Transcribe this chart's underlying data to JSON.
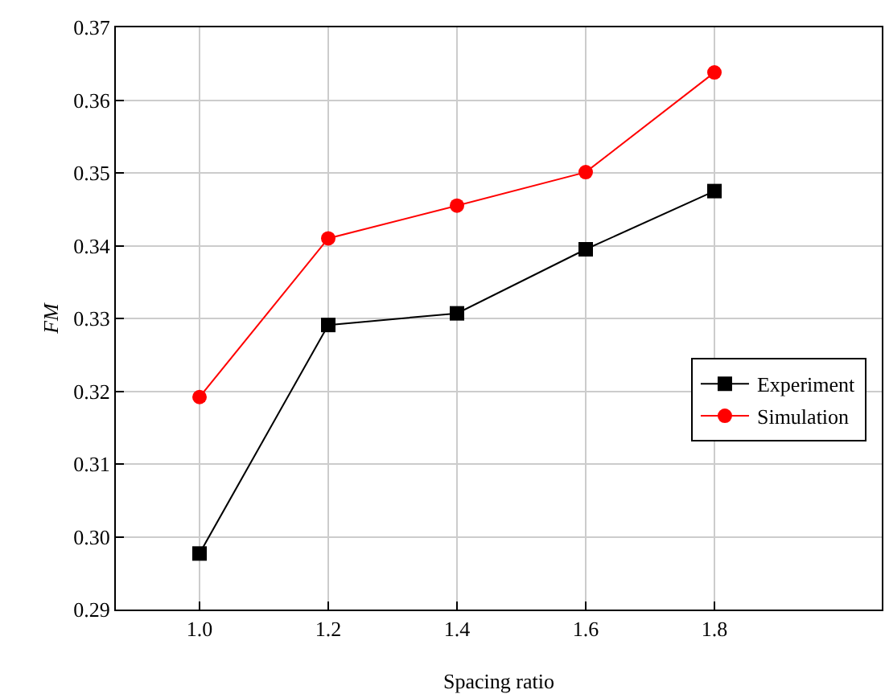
{
  "chart_data": {
    "type": "line",
    "xlabel": "Spacing ratio",
    "ylabel": "FM",
    "x": [
      1.0,
      1.2,
      1.4,
      1.6,
      1.8
    ],
    "series": [
      {
        "name": "Experiment",
        "color": "#000000",
        "marker": "square",
        "values": [
          0.2977,
          0.3291,
          0.3307,
          0.3395,
          0.3475
        ]
      },
      {
        "name": "Simulation",
        "color": "#ff0000",
        "marker": "circle",
        "values": [
          0.3192,
          0.341,
          0.3455,
          0.3501,
          0.3638
        ]
      }
    ],
    "xlim": [
      0.87,
      2.06
    ],
    "xticks": [
      {
        "value": 1.0,
        "label": "1.0"
      },
      {
        "value": 1.2,
        "label": "1.2"
      },
      {
        "value": 1.4,
        "label": "1.4"
      },
      {
        "value": 1.6,
        "label": "1.6"
      },
      {
        "value": 1.8,
        "label": "1.8"
      }
    ],
    "ylim": [
      0.29,
      0.37
    ],
    "yticks": [
      {
        "value": 0.29,
        "label": "0.29"
      },
      {
        "value": 0.3,
        "label": "0.30"
      },
      0.31,
      0.32,
      0.33,
      0.34,
      0.35,
      0.36,
      0.37
    ],
    "grid": true,
    "legend": "right",
    "line_style": "solid"
  }
}
